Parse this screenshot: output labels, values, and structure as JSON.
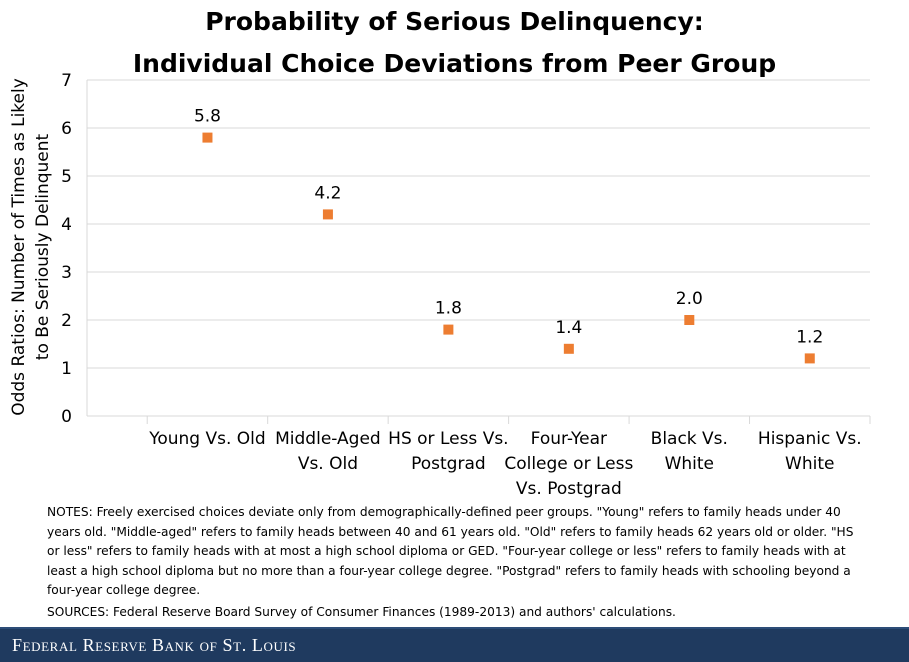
{
  "chart_data": {
    "type": "scatter",
    "title_line1": "Probability of Serious Delinquency:",
    "title_line2": "Individual Choice Deviations from Peer Group",
    "ylabel_line1": "Odds Ratios: Number of Times as Likely",
    "ylabel_line2": "to Be Seriously Delinquent",
    "ylim": [
      0,
      7
    ],
    "yticks": [
      "0",
      "1",
      "2",
      "3",
      "4",
      "5",
      "6",
      "7"
    ],
    "grid": true,
    "marker_color": "#ed7d31",
    "categories": [
      [
        "Young Vs. Old"
      ],
      [
        "Middle-Aged",
        "Vs. Old"
      ],
      [
        "HS or Less Vs.",
        "Postgrad"
      ],
      [
        "Four-Year",
        "College or Less",
        "Vs. Postgrad"
      ],
      [
        "Black Vs.",
        "White"
      ],
      [
        "Hispanic Vs.",
        "White"
      ]
    ],
    "values": [
      5.8,
      4.2,
      1.8,
      1.4,
      2.0,
      1.2
    ],
    "data_labels": [
      "5.8",
      "4.2",
      "1.8",
      "1.4",
      "2.0",
      "1.2"
    ]
  },
  "notes": "NOTES: Freely exercised choices deviate only from demographically-defined peer groups. \"Young\" refers to family heads under 40 years old. \"Middle-aged\" refers to family heads between 40 and 61 years old. \"Old\" refers to family heads 62 years old or older. \"HS or less\" refers to family heads with at most a high school diploma or GED. \"Four-year college or less\" refers to family heads with at least a high school diploma but no more than a four-year college degree. \"Postgrad\" refers to family heads with schooling beyond a four-year college degree.",
  "sources": "SOURCES: Federal Reserve Board Survey of Consumer Finances (1989-2013) and authors' calculations.",
  "footer": "Federal Reserve Bank of St. Louis"
}
